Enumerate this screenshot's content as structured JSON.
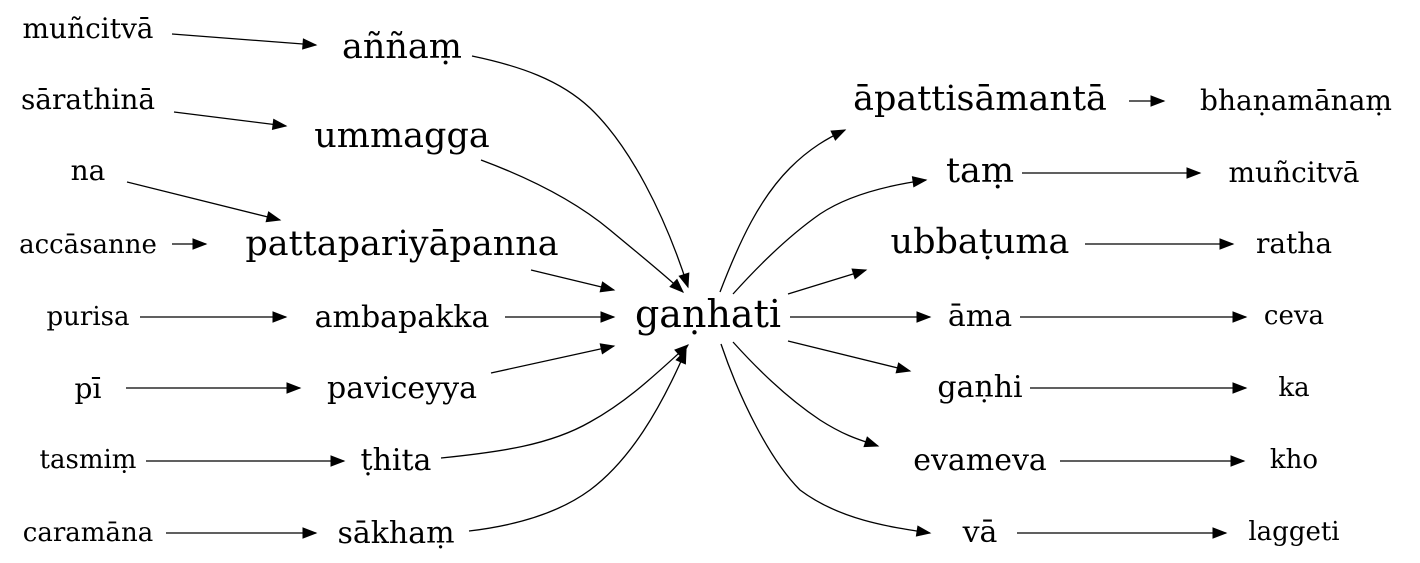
{
  "center": "gaṇhati",
  "left_chains": [
    {
      "outer": "muñcitvā",
      "inner": "aññaṃ"
    },
    {
      "outer": "sārathinā",
      "inner": "ummagga"
    },
    {
      "outer": "na",
      "inner": "pattapariyāpanna"
    },
    {
      "outer": "accāsanne",
      "inner": "pattapariyāpanna"
    },
    {
      "outer": "purisa",
      "inner": "ambapakka"
    },
    {
      "outer": "pī",
      "inner": "paviceyya"
    },
    {
      "outer": "tasmiṃ",
      "inner": "ṭhita"
    },
    {
      "outer": "caramāna",
      "inner": "sākhaṃ"
    }
  ],
  "right_chains": [
    {
      "inner": "āpattisāmantā",
      "outer": "bhaṇamānaṃ"
    },
    {
      "inner": "taṃ",
      "outer": "muñcitvā"
    },
    {
      "inner": "ubbaṭuma",
      "outer": "ratha"
    },
    {
      "inner": "āma",
      "outer": "ceva"
    },
    {
      "inner": "gaṇhi",
      "outer": "ka"
    },
    {
      "inner": "evameva",
      "outer": "kho"
    },
    {
      "inner": "vā",
      "outer": "laggeti"
    }
  ]
}
